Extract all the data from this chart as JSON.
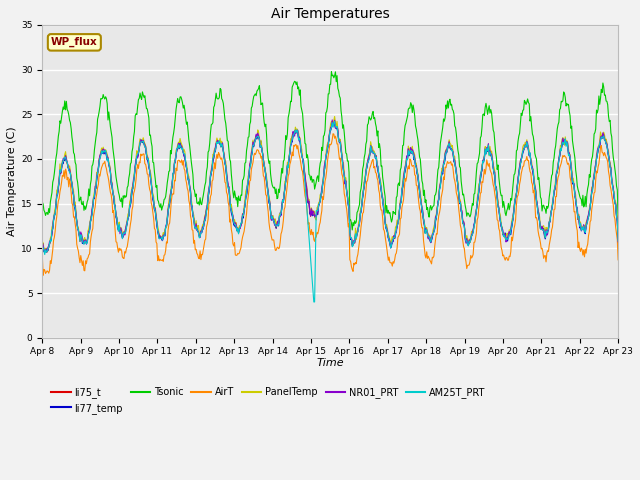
{
  "title": "Air Temperatures",
  "xlabel": "Time",
  "ylabel": "Air Temperature (C)",
  "ylim": [
    0,
    35
  ],
  "yticks": [
    0,
    5,
    10,
    15,
    20,
    25,
    30,
    35
  ],
  "xtick_labels": [
    "Apr 8",
    "Apr 9",
    "Apr 10",
    "Apr 11",
    "Apr 12",
    "Apr 13",
    "Apr 14",
    "Apr 15",
    "Apr 16",
    "Apr 17",
    "Apr 18",
    "Apr 19",
    "Apr 20",
    "Apr 21",
    "Apr 22",
    "Apr 23"
  ],
  "series_names": [
    "li75_t",
    "li77_temp",
    "Tsonic",
    "AirT",
    "PanelTemp",
    "NR01_PRT",
    "AM25T_PRT"
  ],
  "series_colors": [
    "#dd0000",
    "#0000cc",
    "#00cc00",
    "#ff8800",
    "#cccc00",
    "#8800cc",
    "#00cccc"
  ],
  "background_color": "#e8e8e8",
  "grid_color": "#ffffff",
  "wp_flux_label": "WP_flux",
  "wp_flux_color": "#880000",
  "wp_flux_bg": "#ffffcc",
  "wp_flux_border": "#aa8800",
  "fig_width": 6.4,
  "fig_height": 4.8,
  "dpi": 100
}
